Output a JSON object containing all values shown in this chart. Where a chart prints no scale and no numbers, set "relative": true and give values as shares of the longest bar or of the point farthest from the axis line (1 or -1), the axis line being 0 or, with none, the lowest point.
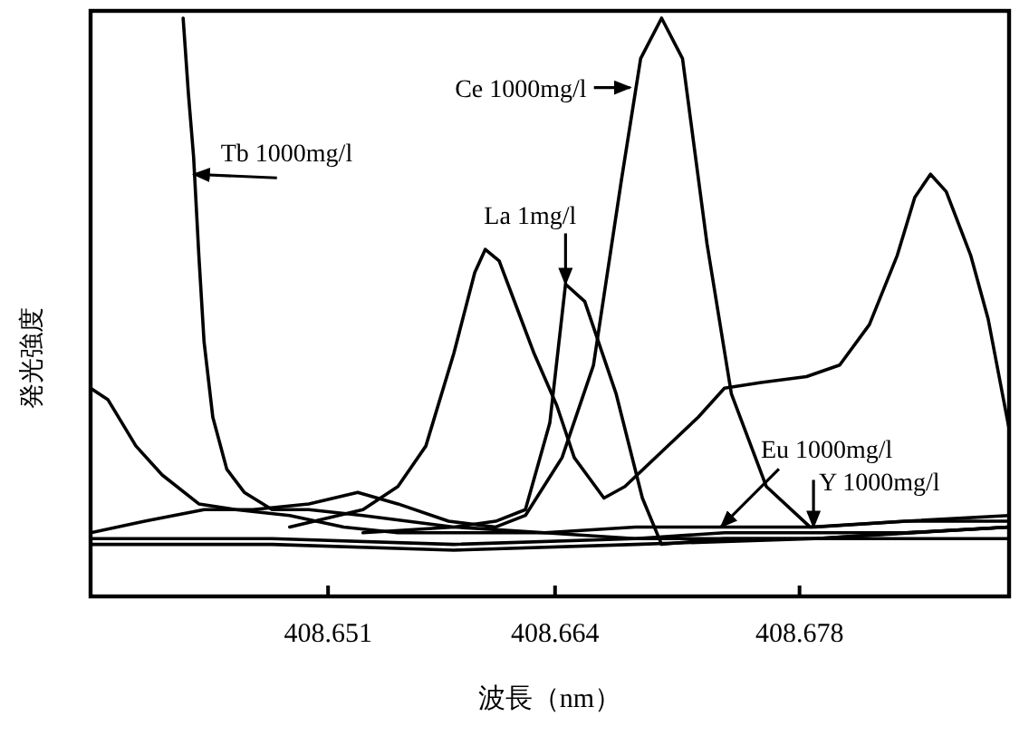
{
  "chart_data": {
    "type": "line",
    "relative": true,
    "xlabel": "波長（nm）",
    "ylabel": "発光強度",
    "xlim": [
      408.6374,
      408.69
    ],
    "xticks": [
      408.651,
      408.664,
      408.678
    ],
    "series": [
      {
        "color": "#000000",
        "x": [
          408.6427,
          408.643,
          408.6433,
          408.6436,
          408.6439,
          408.6444,
          408.6452,
          408.6462,
          408.6478,
          408.6499,
          408.653,
          408.6582,
          408.6634,
          408.6686,
          408.6737,
          408.6789,
          408.6841,
          408.69
        ],
        "values": [
          1.0,
          0.87,
          0.76,
          0.59,
          0.44,
          0.31,
          0.22,
          0.18,
          0.15,
          0.15,
          0.14,
          0.12,
          0.11,
          0.12,
          0.12,
          0.12,
          0.13,
          0.13
        ]
      },
      {
        "color": "#000000",
        "x": [
          408.6488,
          408.653,
          408.655,
          408.6566,
          408.6582,
          408.6594,
          408.66,
          408.6608,
          408.6618,
          408.6628,
          408.6641,
          408.6651,
          408.6668,
          408.668,
          408.6701,
          408.6722,
          408.6737,
          408.6758,
          408.6784,
          408.6803,
          408.682,
          408.6836,
          408.6846,
          408.6855,
          408.6864,
          408.6878,
          408.6888,
          408.69
        ],
        "values": [
          0.12,
          0.15,
          0.19,
          0.26,
          0.42,
          0.56,
          0.6,
          0.58,
          0.5,
          0.42,
          0.33,
          0.24,
          0.17,
          0.19,
          0.25,
          0.31,
          0.36,
          0.37,
          0.38,
          0.4,
          0.47,
          0.59,
          0.69,
          0.73,
          0.7,
          0.59,
          0.48,
          0.29
        ]
      },
      {
        "color": "#000000",
        "x": [
          408.653,
          408.6582,
          408.6606,
          408.6623,
          408.6637,
          408.6646,
          408.6657,
          408.6675,
          408.669,
          408.6701,
          408.6737,
          408.6789,
          408.6841,
          408.69
        ],
        "values": [
          0.11,
          0.12,
          0.13,
          0.15,
          0.3,
          0.54,
          0.51,
          0.35,
          0.17,
          0.09,
          0.1,
          0.1,
          0.11,
          0.12
        ]
      },
      {
        "color": "#000000",
        "x": [
          408.6374,
          408.6405,
          408.6439,
          408.6467,
          408.6499,
          408.6527,
          408.655,
          408.6579,
          408.6606,
          408.6623,
          408.6644,
          408.6662,
          408.6678,
          408.6689,
          408.6701,
          408.6713,
          408.6727,
          408.6741,
          408.6761,
          408.6786,
          408.6841,
          408.69
        ],
        "values": [
          0.11,
          0.13,
          0.15,
          0.15,
          0.16,
          0.18,
          0.16,
          0.13,
          0.12,
          0.14,
          0.24,
          0.4,
          0.72,
          0.93,
          1.0,
          0.93,
          0.61,
          0.35,
          0.19,
          0.12,
          0.13,
          0.14
        ]
      },
      {
        "color": "#000000",
        "x": [
          408.6374,
          408.6384,
          408.64,
          408.6415,
          408.6436,
          408.6457,
          408.6488,
          408.6519,
          408.655,
          408.6582,
          408.6634,
          408.6686,
          408.6737,
          408.6789,
          408.6841,
          408.69
        ],
        "values": [
          0.36,
          0.34,
          0.26,
          0.21,
          0.16,
          0.15,
          0.14,
          0.12,
          0.11,
          0.11,
          0.11,
          0.1,
          0.11,
          0.11,
          0.11,
          0.12
        ]
      },
      {
        "color": "#000000",
        "x": [
          408.6374,
          408.6478,
          408.6582,
          408.6686,
          408.6789,
          408.69
        ],
        "values": [
          0.1,
          0.1,
          0.09,
          0.1,
          0.1,
          0.12
        ]
      },
      {
        "color": "#000000",
        "x": [
          408.6374,
          408.6478,
          408.6582,
          408.6686,
          408.6789,
          408.69
        ],
        "values": [
          0.09,
          0.09,
          0.08,
          0.09,
          0.1,
          0.1
        ]
      }
    ],
    "annotations": [
      {
        "text": "Tb 1000mg/l",
        "x": 408.6433,
        "y": 0.73
      },
      {
        "text": "Ce 1000mg/l",
        "x": 408.6683,
        "y": 0.88
      },
      {
        "text": "La 1mg/l",
        "x": 408.6646,
        "y": 0.54
      },
      {
        "text": "Eu 1000mg/l",
        "x": 408.6735,
        "y": 0.12
      },
      {
        "text": "Y 1000mg/l",
        "x": 408.6788,
        "y": 0.12
      }
    ]
  }
}
